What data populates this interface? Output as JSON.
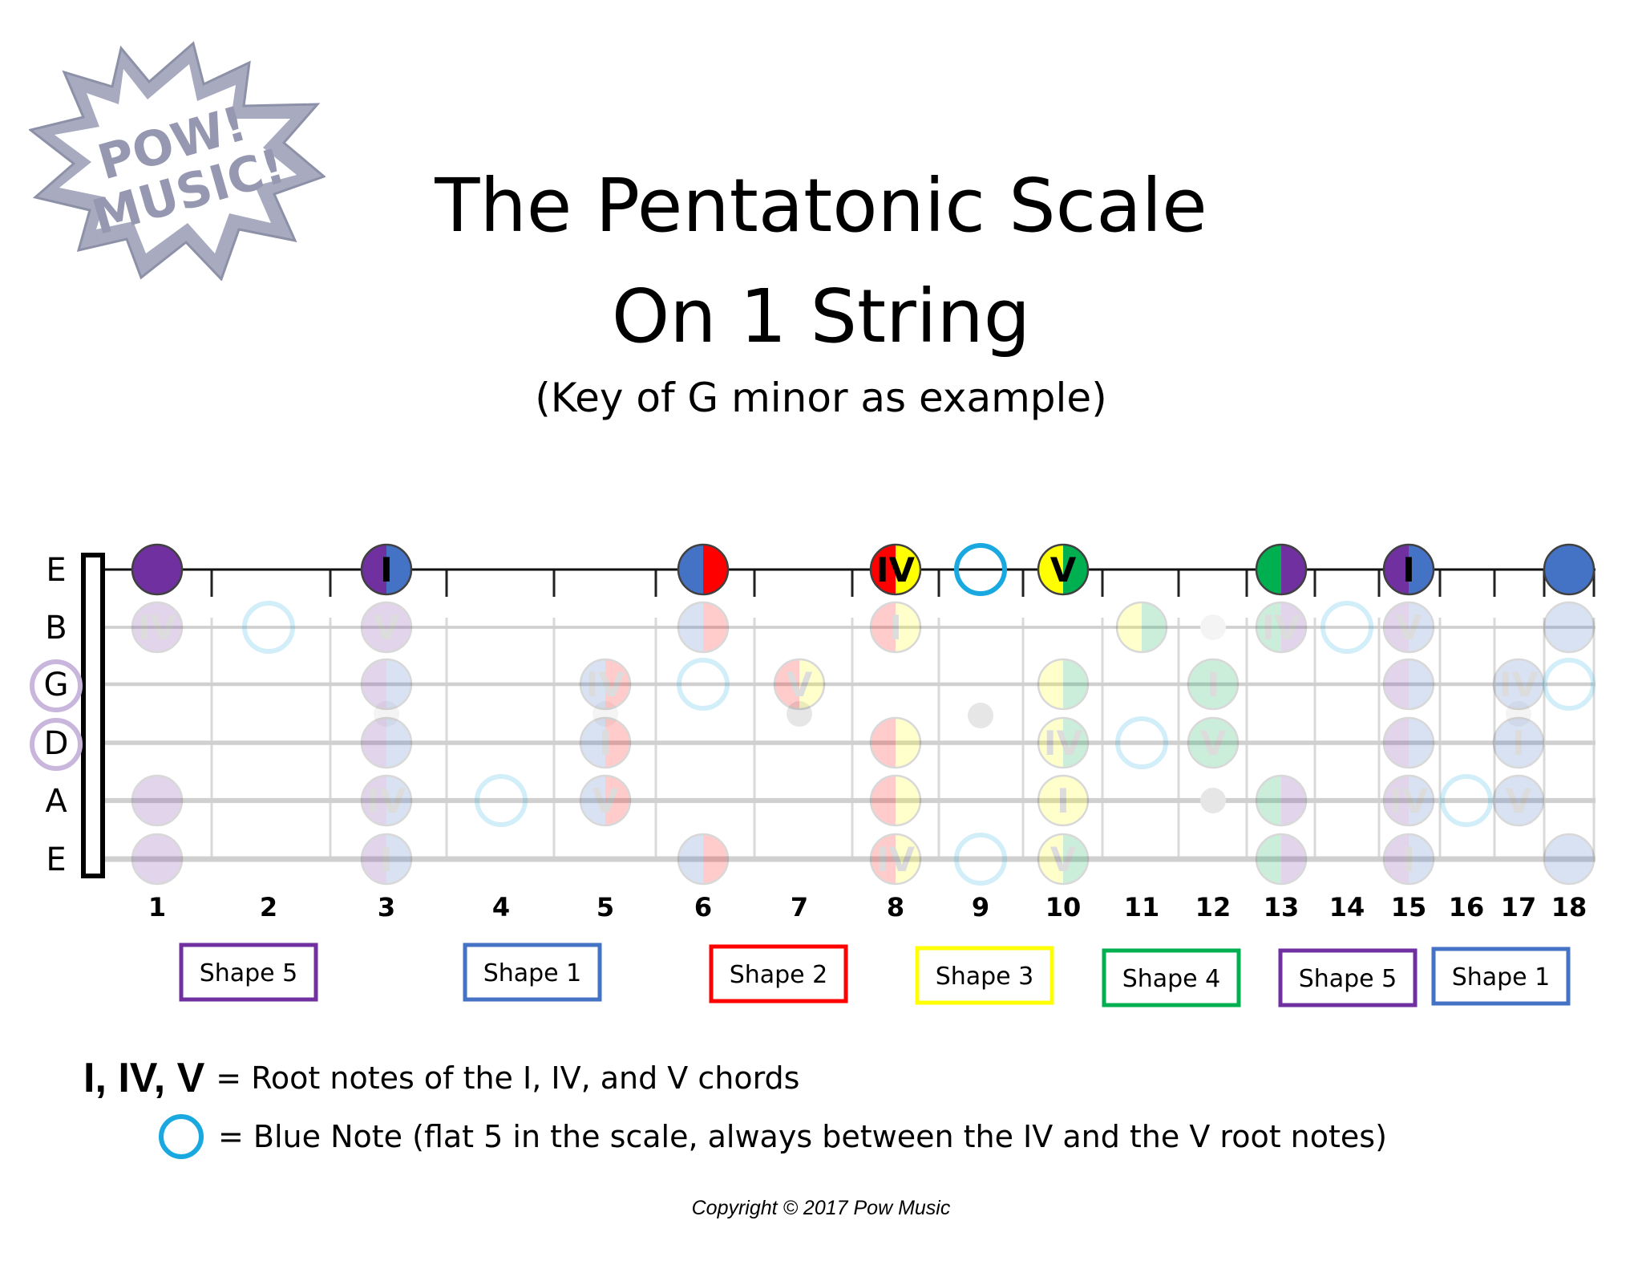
{
  "logo": {
    "line1": "POW!",
    "line2": "MUSIC!"
  },
  "title": {
    "line1": "The Pentatonic Scale",
    "line2": "On 1 String"
  },
  "subtitle": "(Key of G minor as example)",
  "strings": [
    "E",
    "B",
    "G",
    "D",
    "A",
    "E"
  ],
  "circled_strings": [
    "G",
    "D"
  ],
  "fret_numbers": [
    "1",
    "2",
    "3",
    "4",
    "5",
    "6",
    "7",
    "8",
    "9",
    "10",
    "11",
    "12",
    "13",
    "14",
    "15",
    "16",
    "17",
    "18"
  ],
  "colors": {
    "purple": "#7030a0",
    "blue": "#4472c4",
    "red": "#ff0000",
    "yellow": "#ffff00",
    "green": "#00b050",
    "blue_note": "#19a9e0"
  },
  "highlighted_notes": [
    {
      "string": 1,
      "fret": "1",
      "colors": [
        "purple",
        "purple"
      ],
      "label": ""
    },
    {
      "string": 1,
      "fret": "3",
      "colors": [
        "purple",
        "blue"
      ],
      "label": "I"
    },
    {
      "string": 1,
      "fret": "6",
      "colors": [
        "blue",
        "red"
      ],
      "label": ""
    },
    {
      "string": 1,
      "fret": "8",
      "colors": [
        "red",
        "yellow"
      ],
      "label": "IV"
    },
    {
      "string": 1,
      "fret": "9",
      "blue_note": true
    },
    {
      "string": 1,
      "fret": "10",
      "colors": [
        "yellow",
        "green"
      ],
      "label": "V"
    },
    {
      "string": 1,
      "fret": "13",
      "colors": [
        "green",
        "purple"
      ],
      "label": ""
    },
    {
      "string": 1,
      "fret": "15",
      "colors": [
        "purple",
        "blue"
      ],
      "label": "I"
    },
    {
      "string": 1,
      "fret": "18",
      "colors": [
        "blue",
        "blue"
      ],
      "label": ""
    }
  ],
  "faded_notes": [
    {
      "string": 2,
      "fret": "1",
      "colors": [
        "purple",
        "purple"
      ],
      "label": "IV"
    },
    {
      "string": 2,
      "fret": "2",
      "blue_note": true
    },
    {
      "string": 2,
      "fret": "3",
      "colors": [
        "purple",
        "purple"
      ],
      "label": "V"
    },
    {
      "string": 2,
      "fret": "6",
      "colors": [
        "blue",
        "red"
      ],
      "label": ""
    },
    {
      "string": 2,
      "fret": "8",
      "colors": [
        "red",
        "yellow"
      ],
      "label": "I"
    },
    {
      "string": 2,
      "fret": "11",
      "colors": [
        "yellow",
        "green"
      ],
      "label": ""
    },
    {
      "string": 2,
      "fret": "13",
      "colors": [
        "green",
        "purple"
      ],
      "label": "IV"
    },
    {
      "string": 2,
      "fret": "14",
      "blue_note": true
    },
    {
      "string": 2,
      "fret": "15",
      "colors": [
        "purple",
        "blue"
      ],
      "label": "V"
    },
    {
      "string": 2,
      "fret": "18",
      "colors": [
        "blue",
        "blue"
      ],
      "label": ""
    },
    {
      "string": 3,
      "fret": "3",
      "colors": [
        "purple",
        "blue"
      ],
      "label": ""
    },
    {
      "string": 3,
      "fret": "5",
      "colors": [
        "blue",
        "red"
      ],
      "label": "IV"
    },
    {
      "string": 3,
      "fret": "6",
      "blue_note": true
    },
    {
      "string": 3,
      "fret": "7",
      "colors": [
        "red",
        "yellow"
      ],
      "label": "V"
    },
    {
      "string": 3,
      "fret": "10",
      "colors": [
        "yellow",
        "green"
      ],
      "label": ""
    },
    {
      "string": 3,
      "fret": "12",
      "colors": [
        "green",
        "green"
      ],
      "label": "I"
    },
    {
      "string": 3,
      "fret": "15",
      "colors": [
        "purple",
        "blue"
      ],
      "label": ""
    },
    {
      "string": 3,
      "fret": "17",
      "colors": [
        "blue",
        "blue"
      ],
      "label": "IV"
    },
    {
      "string": 3,
      "fret": "18",
      "blue_note": true
    },
    {
      "string": 4,
      "fret": "3",
      "colors": [
        "purple",
        "blue"
      ],
      "label": ""
    },
    {
      "string": 4,
      "fret": "5",
      "colors": [
        "blue",
        "red"
      ],
      "label": "I"
    },
    {
      "string": 4,
      "fret": "8",
      "colors": [
        "red",
        "yellow"
      ],
      "label": ""
    },
    {
      "string": 4,
      "fret": "10",
      "colors": [
        "yellow",
        "green"
      ],
      "label": "IV"
    },
    {
      "string": 4,
      "fret": "11",
      "blue_note": true
    },
    {
      "string": 4,
      "fret": "12",
      "colors": [
        "green",
        "green"
      ],
      "label": "V"
    },
    {
      "string": 4,
      "fret": "15",
      "colors": [
        "purple",
        "blue"
      ],
      "label": ""
    },
    {
      "string": 4,
      "fret": "17",
      "colors": [
        "blue",
        "blue"
      ],
      "label": "I"
    },
    {
      "string": 5,
      "fret": "1",
      "colors": [
        "purple",
        "purple"
      ],
      "label": ""
    },
    {
      "string": 5,
      "fret": "3",
      "colors": [
        "purple",
        "blue"
      ],
      "label": "IV"
    },
    {
      "string": 5,
      "fret": "4",
      "blue_note": true
    },
    {
      "string": 5,
      "fret": "5",
      "colors": [
        "blue",
        "red"
      ],
      "label": "V"
    },
    {
      "string": 5,
      "fret": "8",
      "colors": [
        "red",
        "yellow"
      ],
      "label": ""
    },
    {
      "string": 5,
      "fret": "10",
      "colors": [
        "yellow",
        "yellow"
      ],
      "label": "I"
    },
    {
      "string": 5,
      "fret": "13",
      "colors": [
        "green",
        "purple"
      ],
      "label": ""
    },
    {
      "string": 5,
      "fret": "15",
      "colors": [
        "purple",
        "blue"
      ],
      "label": "IV"
    },
    {
      "string": 5,
      "fret": "16",
      "blue_note": true
    },
    {
      "string": 5,
      "fret": "17",
      "colors": [
        "blue",
        "blue"
      ],
      "label": "V"
    },
    {
      "string": 6,
      "fret": "1",
      "colors": [
        "purple",
        "purple"
      ],
      "label": ""
    },
    {
      "string": 6,
      "fret": "3",
      "colors": [
        "purple",
        "blue"
      ],
      "label": "I"
    },
    {
      "string": 6,
      "fret": "6",
      "colors": [
        "blue",
        "red"
      ],
      "label": ""
    },
    {
      "string": 6,
      "fret": "8",
      "colors": [
        "red",
        "yellow"
      ],
      "label": "IV"
    },
    {
      "string": 6,
      "fret": "9",
      "blue_note": true
    },
    {
      "string": 6,
      "fret": "10",
      "colors": [
        "yellow",
        "green"
      ],
      "label": "V"
    },
    {
      "string": 6,
      "fret": "13",
      "colors": [
        "green",
        "purple"
      ],
      "label": ""
    },
    {
      "string": 6,
      "fret": "15",
      "colors": [
        "purple",
        "blue"
      ],
      "label": "I"
    },
    {
      "string": 6,
      "fret": "18",
      "colors": [
        "blue",
        "blue"
      ],
      "label": ""
    }
  ],
  "shapes": [
    {
      "label": "Shape 5",
      "color": "purple"
    },
    {
      "label": "Shape 1",
      "color": "blue"
    },
    {
      "label": "Shape 2",
      "color": "red"
    },
    {
      "label": "Shape 3",
      "color": "yellow"
    },
    {
      "label": "Shape 4",
      "color": "green"
    },
    {
      "label": "Shape 5",
      "color": "purple"
    },
    {
      "label": "Shape 1",
      "color": "blue"
    }
  ],
  "legend": {
    "chord_label": "I, IV, V",
    "chord_desc": "= Root notes of the I, IV, and V chords",
    "blue_desc": "= Blue Note (flat 5 in the scale, always between the IV and the V root notes)"
  },
  "copyright": "Copyright © 2017 Pow Music"
}
